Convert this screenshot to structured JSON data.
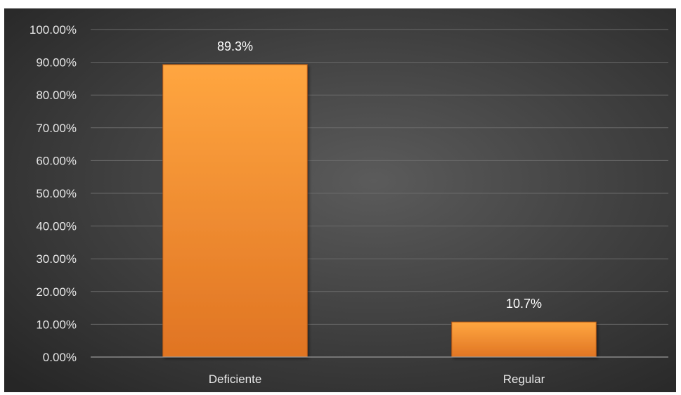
{
  "chart_data": {
    "type": "bar",
    "categories": [
      "Deficiente",
      "Regular"
    ],
    "values": [
      89.3,
      10.7
    ],
    "data_labels": [
      "89.3%",
      "10.7%"
    ],
    "ylim": [
      0,
      100
    ],
    "yticks": [
      0,
      10,
      20,
      30,
      40,
      50,
      60,
      70,
      80,
      90,
      100
    ],
    "ytick_labels": [
      "0.00%",
      "10.00%",
      "20.00%",
      "30.00%",
      "40.00%",
      "50.00%",
      "60.00%",
      "70.00%",
      "80.00%",
      "90.00%",
      "100.00%"
    ],
    "grid": true,
    "legend": "none",
    "colors": {
      "bar_top": "#ffa640",
      "bar_bottom": "#e07423",
      "bar_edge": "#b85a14",
      "background_center": "#5b5b5b",
      "background_edge": "#262626",
      "gridline": "#6a6a6a",
      "axis": "#9a9a9a",
      "text": "#e8e8e8"
    }
  }
}
